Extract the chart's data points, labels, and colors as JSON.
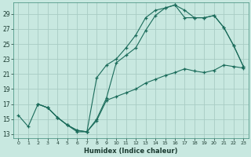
{
  "xlabel": "Humidex (Indice chaleur)",
  "bg_color": "#c8e8e0",
  "grid_color": "#a8ccc4",
  "line_color": "#1a6b5a",
  "xlim": [
    -0.5,
    23.5
  ],
  "ylim": [
    12.5,
    30.5
  ],
  "xticks": [
    0,
    1,
    2,
    3,
    4,
    5,
    6,
    7,
    8,
    9,
    10,
    11,
    12,
    13,
    14,
    15,
    16,
    17,
    18,
    19,
    20,
    21,
    22,
    23
  ],
  "yticks": [
    13,
    15,
    17,
    19,
    21,
    23,
    25,
    27,
    29
  ],
  "line1_x": [
    0,
    1,
    2,
    3,
    4,
    5,
    6,
    7,
    8,
    9,
    10,
    11,
    12,
    13,
    14,
    15,
    16,
    17,
    18,
    19,
    20,
    21,
    22,
    23
  ],
  "line1_y": [
    15.5,
    14.0,
    17.0,
    16.5,
    15.2,
    14.2,
    13.3,
    13.3,
    14.8,
    17.5,
    18.0,
    18.5,
    19.0,
    19.8,
    20.3,
    20.8,
    21.2,
    21.7,
    21.4,
    21.2,
    21.5,
    22.2,
    22.0,
    21.8
  ],
  "line2_x": [
    2,
    3,
    4,
    5,
    6,
    7,
    8,
    9,
    10,
    11,
    12,
    13,
    14,
    15,
    16,
    17,
    18,
    19,
    20,
    21,
    22,
    23
  ],
  "line2_y": [
    17.0,
    16.5,
    15.2,
    14.2,
    13.5,
    13.3,
    20.5,
    22.2,
    23.0,
    24.5,
    26.2,
    28.5,
    29.5,
    29.8,
    30.2,
    29.5,
    28.5,
    28.5,
    28.8,
    27.2,
    24.8,
    22.0
  ],
  "line3_x": [
    2,
    3,
    4,
    5,
    6,
    7,
    8,
    9,
    10,
    11,
    12,
    13,
    14,
    15,
    16,
    17,
    18,
    19,
    20,
    21,
    22,
    23
  ],
  "line3_y": [
    17.0,
    16.5,
    15.2,
    14.2,
    13.5,
    13.3,
    15.0,
    17.8,
    22.5,
    23.5,
    24.5,
    26.8,
    28.8,
    29.8,
    30.2,
    28.5,
    28.5,
    28.5,
    28.8,
    27.2,
    24.8,
    22.0
  ]
}
